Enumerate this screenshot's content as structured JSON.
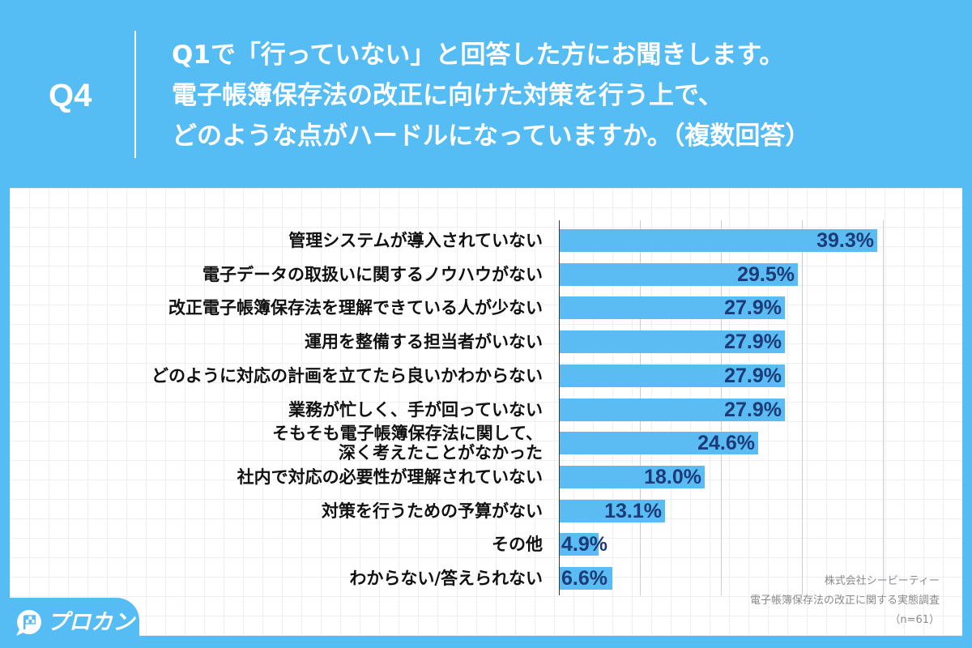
{
  "colors": {
    "background": "#56bdf4",
    "panel": "#ffffff",
    "header_text": "#ffffff",
    "category_text": "#111111",
    "source_text": "#8a8a8a"
  },
  "header": {
    "question_number": "Q4",
    "lines": [
      "Q1で「行っていない」と回答した方にお聞きします。",
      "電子帳簿保存法の改正に向けた対策を行う上で、",
      "どのような点がハードルになっていますか。（複数回答）"
    ]
  },
  "chart_data": {
    "type": "bar",
    "orientation": "horizontal",
    "categories": [
      "管理システムが導入されていない",
      "電子データの取扱いに関するノウハウがない",
      "改正電子帳簿保存法を理解できている人が少ない",
      "運用を整備する担当者がいない",
      "どのように対応の計画を立てたら良いかわからない",
      "業務が忙しく、手が回っていない",
      "そもそも電子帳簿保存法に関して、\n深く考えたことがなかった",
      "社内で対応の必要性が理解されていない",
      "対策を行うための予算がない",
      "その他",
      "わからない/答えられない"
    ],
    "values": [
      39.3,
      29.5,
      27.9,
      27.9,
      27.9,
      27.9,
      24.6,
      18.0,
      13.1,
      4.9,
      6.6
    ],
    "data_labels": [
      "39.3%",
      "29.5%",
      "27.9%",
      "27.9%",
      "27.9%",
      "27.9%",
      "24.6%",
      "18.0%",
      "13.1%",
      "4.9%",
      "6.6%"
    ],
    "xlim": [
      0,
      40
    ],
    "x_gridlines": [
      10,
      20,
      30,
      40
    ],
    "grid": true,
    "colors": {
      "bar": "#5abcf2",
      "data_label": "#1c3b78"
    }
  },
  "source": {
    "lines": [
      "株式会社シービーティー",
      "電子帳簿保存法の改正に関する実態調査",
      "（n=61）"
    ]
  },
  "logo": {
    "text": "プロカン",
    "icon": "checkered-flag-icon"
  }
}
